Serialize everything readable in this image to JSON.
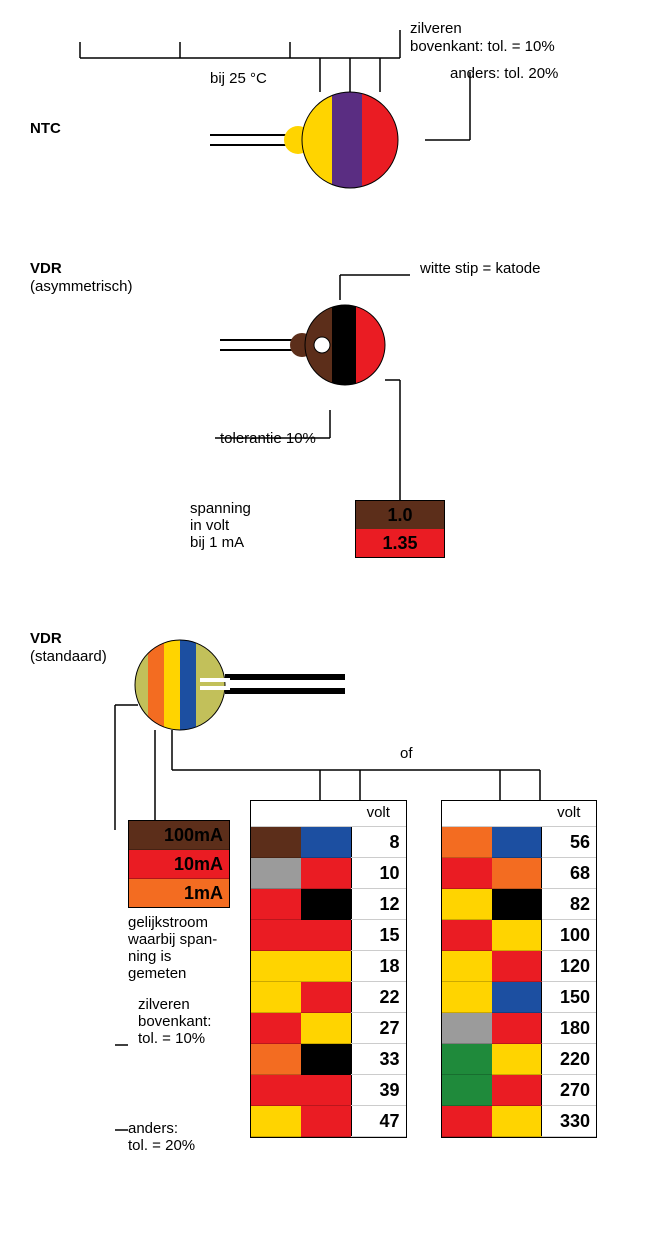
{
  "colors": {
    "black": "#000000",
    "brown": "#5c2e1a",
    "red": "#ea1c23",
    "orange": "#f36c21",
    "yellow": "#ffd400",
    "green": "#1f8a3b",
    "blue": "#1c4fa1",
    "violet": "#5a2d82",
    "grey": "#9b9b9b",
    "white": "#ffffff",
    "olive": "#c2c05a"
  },
  "ntc": {
    "name": "NTC",
    "temp_label": "bij 25 °C",
    "top_label1": "zilveren",
    "top_label2": "bovenkant: tol. = 10%",
    "top_label3": "anders: tol. 20%",
    "body_color": "#ea1c23",
    "bands": [
      "#ffd400",
      "#5a2d82",
      "#ea1c23"
    ]
  },
  "vdr_asym": {
    "name": "VDR",
    "sub": "(asymmetrisch)",
    "right_label": "witte stip = katode",
    "tol_label": "tolerantie 10%",
    "v_label": "spanning\nin volt\nbij 1 mA",
    "body_color": "#5c2e1a",
    "bands": [
      "#5c2e1a",
      "#000000",
      "#ea1c23"
    ],
    "volt_rows": [
      {
        "bg": "#5c2e1a",
        "text": "1.0",
        "fg": "#000"
      },
      {
        "bg": "#ea1c23",
        "text": "1.35",
        "fg": "#000"
      }
    ]
  },
  "vdr_std": {
    "name": "VDR",
    "sub": "(standaard)",
    "body_color": "#c2c05a",
    "bands": [
      "#f36c21",
      "#ffd400",
      "#1c4fa1"
    ],
    "of_label": "of",
    "volt_header": "volt",
    "current_rows": [
      {
        "bg": "#5c2e1a",
        "text": "100mA",
        "fg": "#000"
      },
      {
        "bg": "#ea1c23",
        "text": "10mA",
        "fg": "#000"
      },
      {
        "bg": "#f36c21",
        "text": "1mA",
        "fg": "#000"
      }
    ],
    "current_label": "gelijkstroom\nwaarbij span-\nning is\ngemeten",
    "tol10": "zilveren\nbovenkant:\ntol. = 10%",
    "tol20": "anders:\ntol. = 20%",
    "table1": [
      {
        "c1": "#5c2e1a",
        "c2": "#1c4fa1",
        "v": "8"
      },
      {
        "c1": "#9b9b9b",
        "c2": "#ea1c23",
        "v": "10"
      },
      {
        "c1": "#ea1c23",
        "c2": "#000000",
        "v": "12"
      },
      {
        "c1": "#ea1c23",
        "c2": "#ea1c23",
        "v": "15"
      },
      {
        "c1": "#ffd400",
        "c2": "#ffd400",
        "v": "18"
      },
      {
        "c1": "#ffd400",
        "c2": "#ea1c23",
        "v": "22"
      },
      {
        "c1": "#ea1c23",
        "c2": "#ffd400",
        "v": "27"
      },
      {
        "c1": "#f36c21",
        "c2": "#000000",
        "v": "33"
      },
      {
        "c1": "#ea1c23",
        "c2": "#ea1c23",
        "v": "39"
      },
      {
        "c1": "#ffd400",
        "c2": "#ea1c23",
        "v": "47"
      }
    ],
    "table2": [
      {
        "c1": "#f36c21",
        "c2": "#1c4fa1",
        "v": "56"
      },
      {
        "c1": "#ea1c23",
        "c2": "#f36c21",
        "v": "68"
      },
      {
        "c1": "#ffd400",
        "c2": "#000000",
        "v": "82"
      },
      {
        "c1": "#ea1c23",
        "c2": "#ffd400",
        "v": "100"
      },
      {
        "c1": "#ffd400",
        "c2": "#ea1c23",
        "v": "120"
      },
      {
        "c1": "#ffd400",
        "c2": "#1c4fa1",
        "v": "150"
      },
      {
        "c1": "#9b9b9b",
        "c2": "#ea1c23",
        "v": "180"
      },
      {
        "c1": "#1f8a3b",
        "c2": "#ffd400",
        "v": "220"
      },
      {
        "c1": "#1f8a3b",
        "c2": "#ea1c23",
        "v": "270"
      },
      {
        "c1": "#ea1c23",
        "c2": "#ffd400",
        "v": "330"
      }
    ]
  }
}
